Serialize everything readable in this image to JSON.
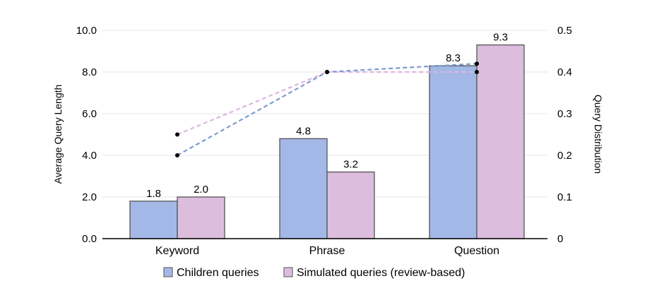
{
  "chart_data": {
    "type": "bar",
    "categories": [
      "Keyword",
      "Phrase",
      "Question"
    ],
    "ylabel": "Average Query Length",
    "ylim": [
      0,
      10
    ],
    "yticks": [
      "0.0",
      "2.0",
      "4.0",
      "6.0",
      "8.0",
      "10.0"
    ],
    "y2label": "Query Distribution",
    "y2lim": [
      0,
      0.5
    ],
    "y2ticks": [
      "0",
      "0.1",
      "0.2",
      "0.3",
      "0.4",
      "0.5"
    ],
    "grid": true,
    "legend_position": "bottom",
    "series": [
      {
        "name": "Children queries",
        "color": "#a3b8e6",
        "values": [
          1.8,
          4.8,
          8.3
        ],
        "labels": [
          "1.8",
          "4.8",
          "8.3"
        ],
        "distribution": [
          0.2,
          0.4,
          0.42
        ],
        "line_color": "#7f9bd0"
      },
      {
        "name": "Simulated queries (review-based)",
        "color": "#dcbddd",
        "values": [
          2.0,
          3.2,
          9.3
        ],
        "labels": [
          "2.0",
          "3.2",
          "9.3"
        ],
        "distribution": [
          0.25,
          0.4,
          0.4
        ],
        "line_color": "#dcb6e0"
      }
    ]
  }
}
